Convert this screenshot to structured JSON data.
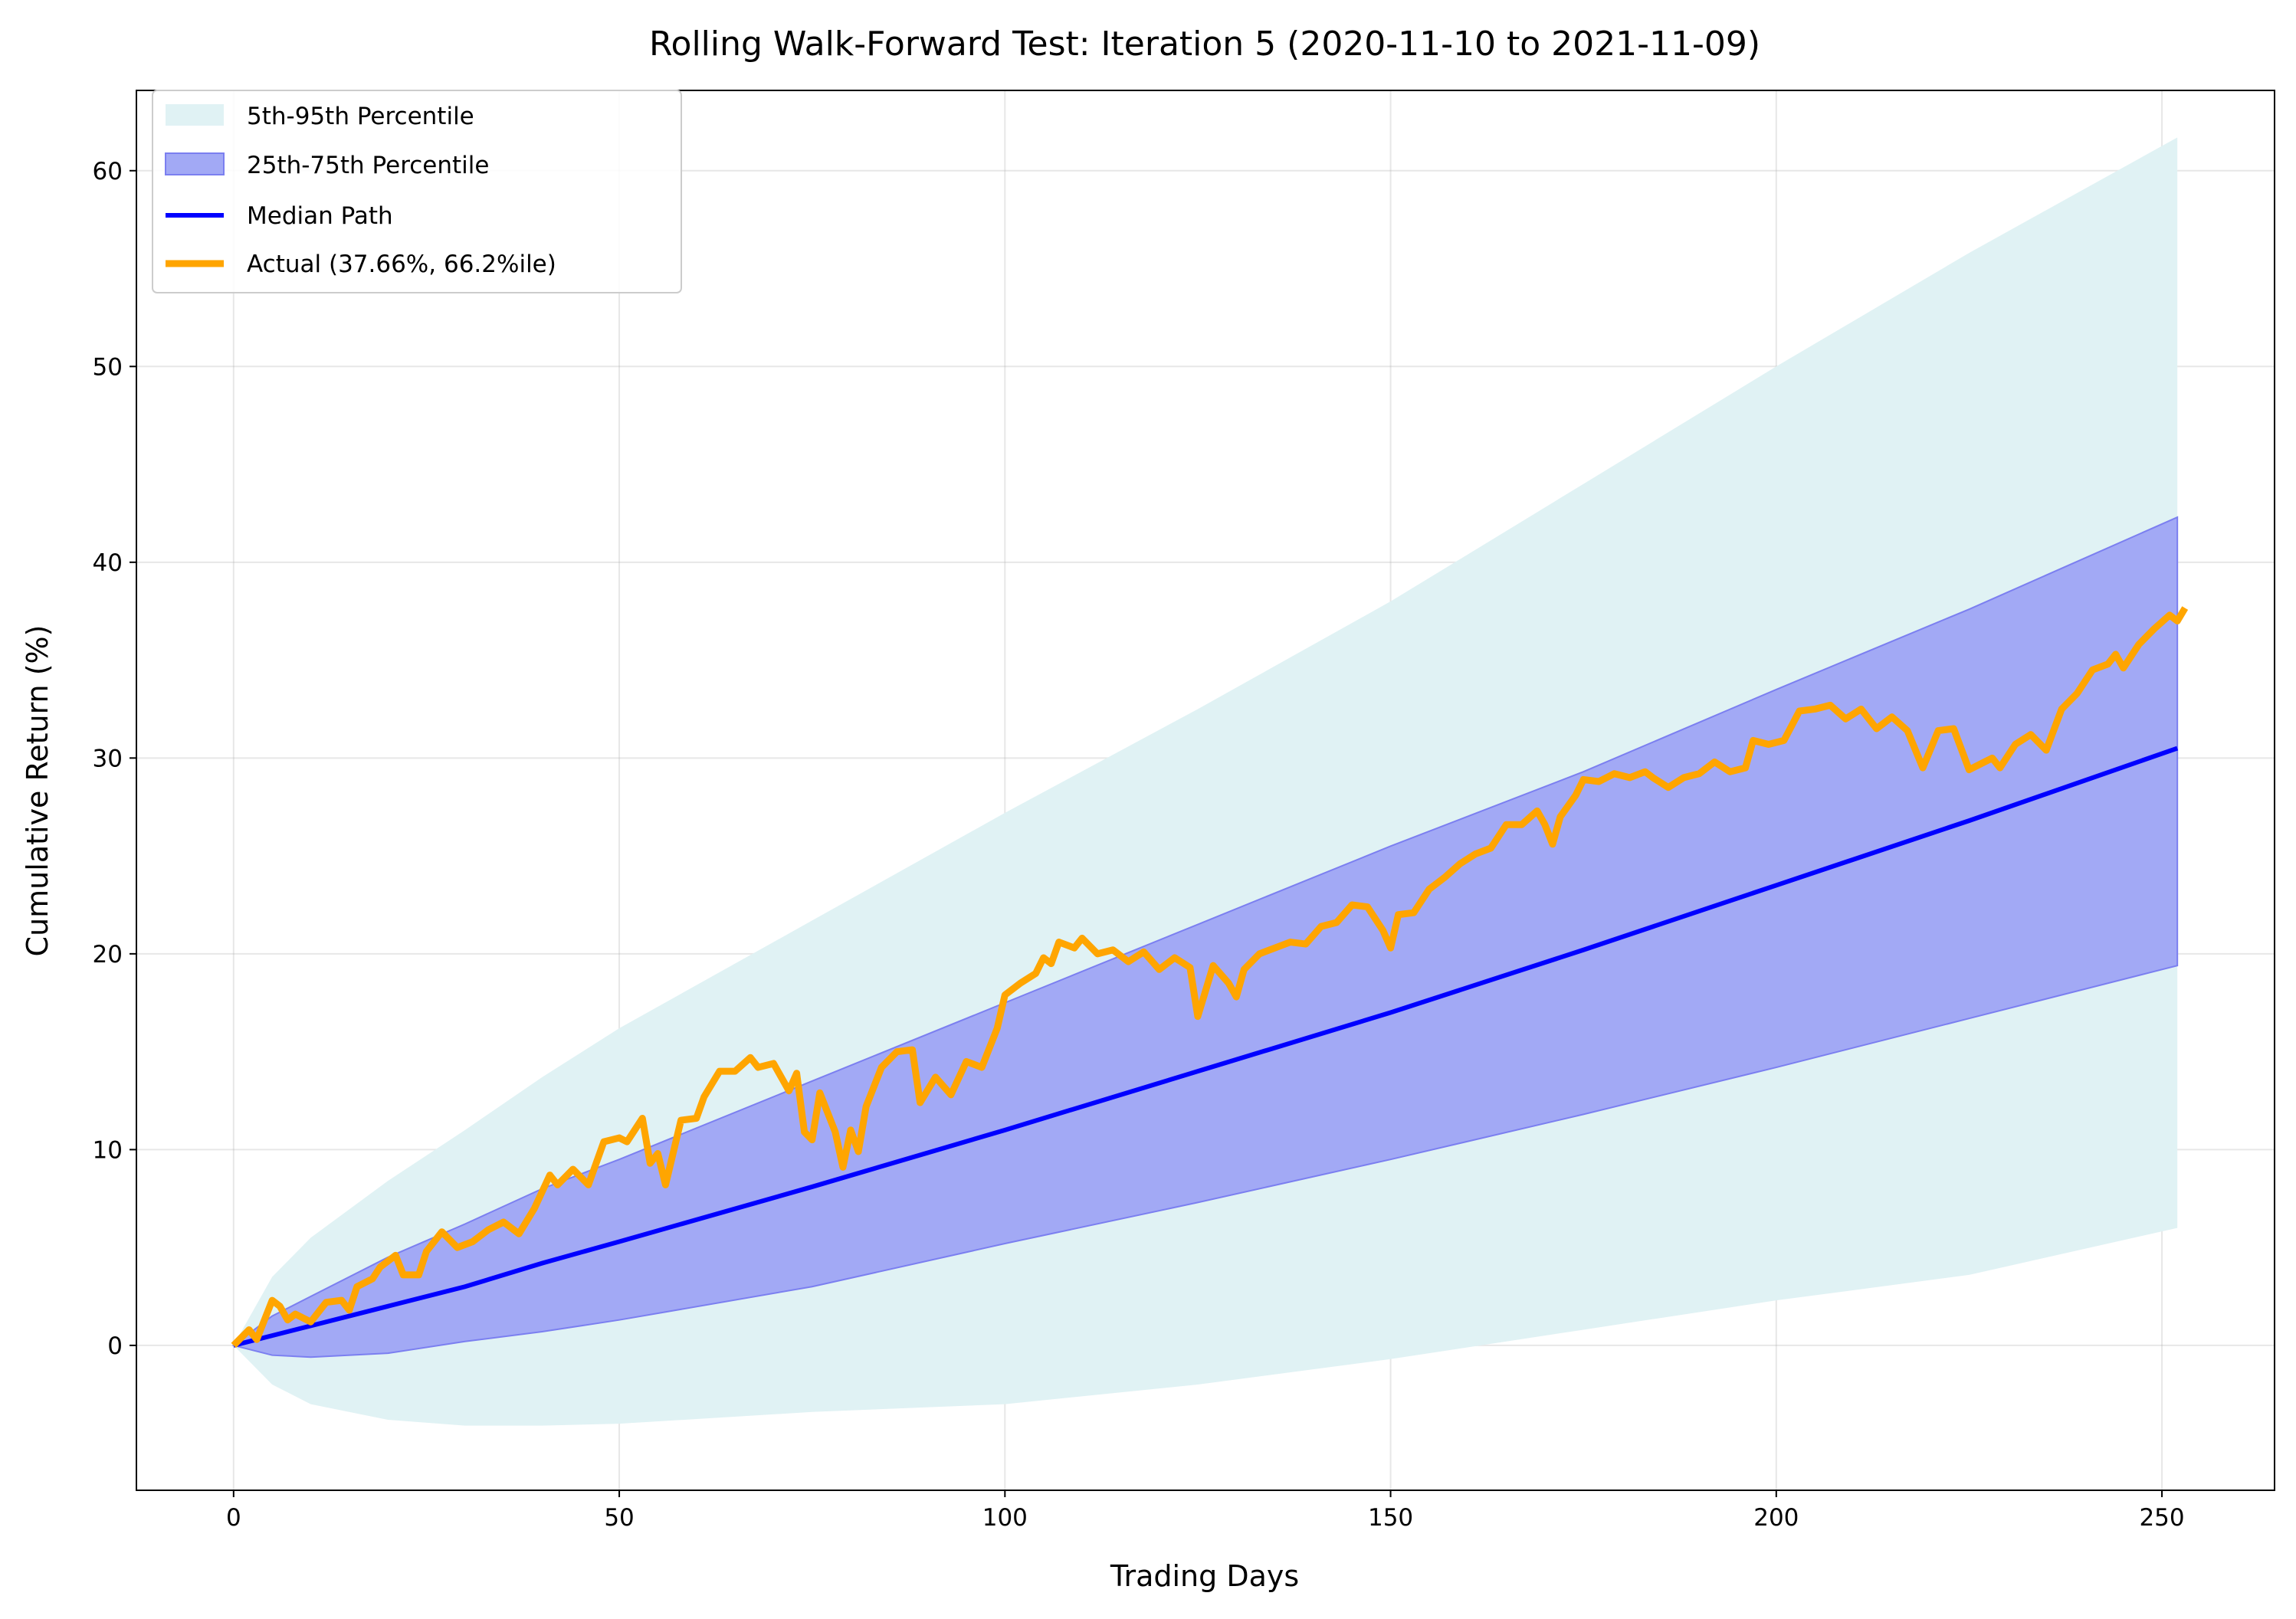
{
  "chart_data": {
    "type": "line",
    "title": "Rolling Walk-Forward Test: Iteration 5 (2020-11-10 to 2021-11-09)",
    "xlabel": "Trading Days",
    "ylabel": "Cumulative Return (%)",
    "xlim": [
      -12.6,
      264.6
    ],
    "ylim": [
      -7.4,
      64.1
    ],
    "xticks": [
      0,
      50,
      100,
      150,
      200,
      250
    ],
    "yticks": [
      0,
      10,
      20,
      30,
      40,
      50,
      60
    ],
    "grid": true,
    "legend_position": "top-left",
    "colors": {
      "band_90": "#e0f2f4",
      "band_50": "#a2a9f5",
      "band_50_edge": "#7b7ff0",
      "median": "#0000ff",
      "actual": "#ffa500"
    },
    "bands_x": [
      0,
      5,
      10,
      20,
      30,
      40,
      50,
      75,
      100,
      125,
      150,
      175,
      200,
      225,
      252
    ],
    "series": [
      {
        "name": "5th-95th Percentile",
        "kind": "band",
        "lower": [
          0,
          -2,
          -3,
          -3.8,
          -4.1,
          -4.1,
          -4,
          -3.4,
          -3,
          -2,
          -0.7,
          0.8,
          2.3,
          3.6,
          6
        ],
        "upper": [
          0,
          3.5,
          5.5,
          8.4,
          11,
          13.7,
          16.2,
          21.7,
          27.2,
          32.5,
          38,
          44,
          50,
          55.8,
          61.7
        ]
      },
      {
        "name": "25th-75th Percentile",
        "kind": "band",
        "lower": [
          0,
          -0.5,
          -0.6,
          -0.4,
          0.2,
          0.7,
          1.3,
          3,
          5.2,
          7.3,
          9.5,
          11.8,
          14.2,
          16.7,
          19.4
        ],
        "upper": [
          0,
          1.5,
          2.5,
          4.5,
          6.2,
          8,
          9.5,
          13.5,
          17.5,
          21.5,
          25.5,
          29.3,
          33.5,
          37.6,
          42.3
        ]
      },
      {
        "name": "Median Path",
        "kind": "line",
        "values": [
          0,
          0.5,
          1,
          2,
          3,
          4.2,
          5.3,
          8.1,
          11,
          14,
          17,
          20.2,
          23.5,
          26.8,
          30.5
        ]
      },
      {
        "name": "Actual (37.66%, 66.2%ile)",
        "kind": "line",
        "x": [
          0,
          2,
          3,
          5,
          6,
          7,
          8,
          10,
          12,
          14,
          15,
          16,
          18,
          19,
          21,
          22,
          24,
          25,
          27,
          29,
          31,
          33,
          35,
          37,
          39,
          41,
          42,
          44,
          46,
          48,
          50,
          51,
          53,
          54,
          55,
          56,
          58,
          60,
          61,
          63,
          65,
          67,
          68,
          70,
          72,
          73,
          74,
          75,
          76,
          78,
          79,
          80,
          81,
          82,
          84,
          86,
          88,
          89,
          91,
          93,
          95,
          97,
          99,
          100,
          102,
          104,
          105,
          106,
          107,
          109,
          110,
          112,
          114,
          116,
          118,
          120,
          122,
          124,
          125,
          127,
          129,
          130,
          131,
          133,
          135,
          137,
          139,
          141,
          143,
          145,
          147,
          149,
          150,
          151,
          153,
          155,
          157,
          159,
          161,
          163,
          165,
          167,
          169,
          170,
          171,
          172,
          174,
          175,
          177,
          179,
          181,
          183,
          184,
          186,
          188,
          190,
          192,
          194,
          196,
          197,
          199,
          201,
          203,
          205,
          207,
          209,
          211,
          213,
          215,
          217,
          219,
          221,
          223,
          225,
          227,
          228,
          229,
          231,
          233,
          235,
          237,
          239,
          241,
          243,
          244,
          245,
          247,
          249,
          251,
          252,
          253
        ],
        "values": [
          0,
          0.8,
          0.3,
          2.3,
          2.0,
          1.3,
          1.6,
          1.2,
          2.2,
          2.3,
          1.8,
          3.0,
          3.4,
          4.0,
          4.6,
          3.6,
          3.6,
          4.8,
          5.8,
          5.0,
          5.3,
          5.9,
          6.3,
          5.7,
          7.0,
          8.7,
          8.2,
          9.0,
          8.2,
          10.4,
          10.6,
          10.4,
          11.6,
          9.3,
          9.8,
          8.2,
          11.5,
          11.6,
          12.7,
          14.0,
          14.0,
          14.7,
          14.2,
          14.4,
          13.0,
          13.9,
          10.9,
          10.5,
          12.9,
          10.9,
          9.1,
          11.0,
          9.9,
          12.2,
          14.2,
          15.0,
          15.1,
          12.4,
          13.7,
          12.8,
          14.5,
          14.2,
          16.2,
          17.9,
          18.5,
          19.0,
          19.8,
          19.5,
          20.6,
          20.3,
          20.8,
          20.0,
          20.2,
          19.6,
          20.1,
          19.2,
          19.8,
          19.3,
          16.8,
          19.4,
          18.5,
          17.8,
          19.2,
          20.0,
          20.3,
          20.6,
          20.5,
          21.4,
          21.6,
          22.5,
          22.4,
          21.2,
          20.3,
          22.0,
          22.1,
          23.3,
          23.9,
          24.6,
          25.1,
          25.4,
          26.6,
          26.6,
          27.3,
          26.6,
          25.6,
          27.0,
          28.1,
          28.9,
          28.8,
          29.2,
          29.0,
          29.3,
          29.0,
          28.5,
          29.0,
          29.2,
          29.8,
          29.3,
          29.5,
          30.9,
          30.7,
          30.9,
          32.4,
          32.5,
          32.7,
          32.0,
          32.5,
          31.5,
          32.1,
          31.4,
          29.5,
          31.4,
          31.5,
          29.4,
          29.8,
          30.0,
          29.5,
          30.7,
          31.2,
          30.4,
          32.5,
          33.3,
          34.5,
          34.8,
          35.3,
          34.6,
          35.8,
          36.6,
          37.3,
          37.0,
          37.66
        ]
      }
    ]
  }
}
